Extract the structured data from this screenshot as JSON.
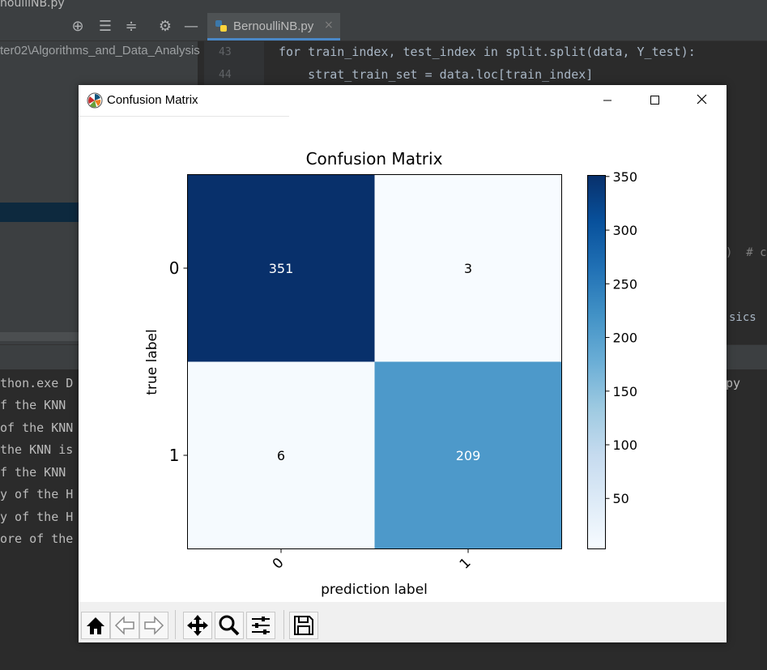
{
  "ide": {
    "title_fragment": "noulliNB.py",
    "tab_filename": "BernoulliNB.py",
    "tab_close": "×",
    "project_path": "ter02\\Algorithms_and_Data_Analysis",
    "code_lines": [
      {
        "num": "43",
        "text": "for train_index, test_index in split.split(data, Y_test):"
      },
      {
        "num": "44",
        "text": "    strat_train_set = data.loc[train_index]"
      }
    ],
    "code_fragment_1": ")  # c",
    "code_fragment_2": "sics ",
    "output_right_fragment": "py",
    "output_lines": [
      "thon.exe D",
      "f the KNN ",
      "of the KNN",
      "the KNN is",
      "f the KNN ",
      "y of the H",
      "y of the H",
      "ore of the"
    ]
  },
  "window": {
    "title": "Confusion Matrix",
    "controls": {
      "minimize": "minimize",
      "maximize": "maximize",
      "close": "close"
    }
  },
  "chart_data": {
    "type": "heatmap",
    "title": "Confusion Matrix",
    "xlabel": "prediction label",
    "ylabel": "true label",
    "x_ticks": [
      "0",
      "1"
    ],
    "y_ticks": [
      "0",
      "1"
    ],
    "matrix": [
      [
        351,
        3
      ],
      [
        6,
        209
      ]
    ],
    "colormap": "Blues",
    "colorbar": {
      "min": 3,
      "max": 351,
      "ticks": [
        50,
        100,
        150,
        200,
        250,
        300,
        350
      ]
    },
    "colors": {
      "low": "#f7fbff",
      "mid": "#4a98c9",
      "high": "#08306b"
    }
  },
  "toolbar": {
    "buttons": [
      {
        "name": "home-button",
        "icon": "home-icon"
      },
      {
        "name": "back-button",
        "icon": "arrow-left-icon"
      },
      {
        "name": "forward-button",
        "icon": "arrow-right-icon"
      },
      {
        "name": "pan-button",
        "icon": "move-icon"
      },
      {
        "name": "zoom-button",
        "icon": "magnifier-icon"
      },
      {
        "name": "configure-subplots-button",
        "icon": "sliders-icon"
      },
      {
        "name": "save-button",
        "icon": "floppy-disk-icon"
      }
    ]
  }
}
